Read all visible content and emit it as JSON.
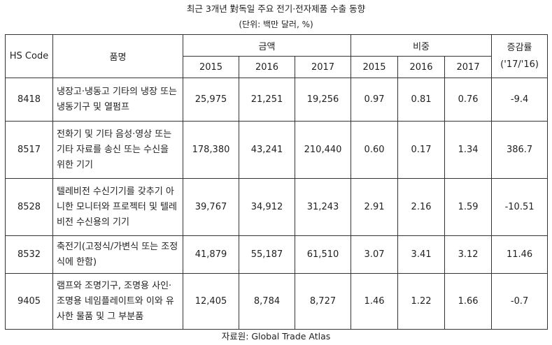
{
  "title": "최근 3개년 對독일 주요 전기·전자제품 수출 동향",
  "unit": "(단위: 백만 달러, %)",
  "headers": {
    "hs_code": "HS Code",
    "item": "품명",
    "amount": "금액",
    "share": "비중",
    "growth": "증감률",
    "growth_period": "('17/'16)",
    "years": [
      "2015",
      "2016",
      "2017"
    ]
  },
  "rows": [
    {
      "code": "8418",
      "name": "냉장고·냉동고 기타의 냉장 또는 냉동기구 및 열펌프",
      "amount": [
        "25,975",
        "21,251",
        "19,256"
      ],
      "share": [
        "0.97",
        "0.81",
        "0.76"
      ],
      "growth": "-9.4"
    },
    {
      "code": "8517",
      "name": "전화기 및 기타 음성·영상 또는 기타 자료를 송신 또는 수신을 위한 기기",
      "amount": [
        "178,380",
        "43,241",
        "210,440"
      ],
      "share": [
        "0.60",
        "0.17",
        "1.34"
      ],
      "growth": "386.7"
    },
    {
      "code": "8528",
      "name": "텔레비전 수신기기를 갖추기 아니한 모니터와 프로젝터 및 텔레비전 수신용의 기기",
      "amount": [
        "39,767",
        "34,912",
        "31,243"
      ],
      "share": [
        "2.91",
        "2.16",
        "1.59"
      ],
      "growth": "-10.51"
    },
    {
      "code": "8532",
      "name": "축전기(고정식/가변식 또는 조정식에 한함)",
      "amount": [
        "41,879",
        "55,187",
        "61,510"
      ],
      "share": [
        "3.07",
        "3.41",
        "3.12"
      ],
      "growth": "11.46"
    },
    {
      "code": "9405",
      "name": "램프와 조명기구, 조명용 사인·조명용 네임플레이트와 이와 유사한 물품 및 그 부분품",
      "amount": [
        "12,405",
        "8,784",
        "8,727"
      ],
      "share": [
        "1.46",
        "1.22",
        "1.66"
      ],
      "growth": "-0.7"
    }
  ],
  "source": "자료원: Global Trade Atlas"
}
